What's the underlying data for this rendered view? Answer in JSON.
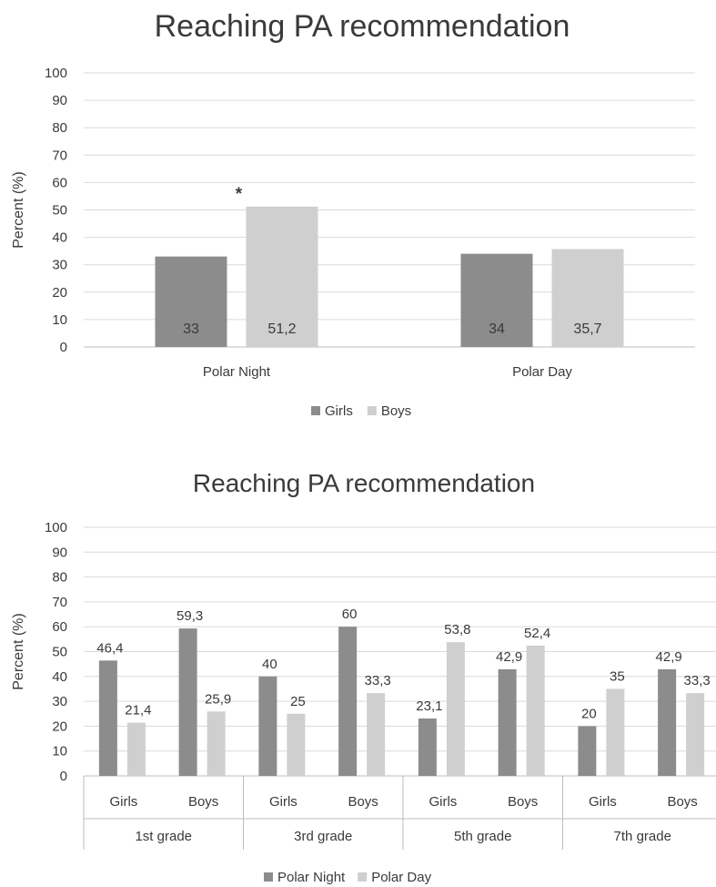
{
  "chart_data": [
    {
      "type": "bar",
      "title": "Reaching PA recommendation",
      "ylabel": "Percent (%)",
      "xlabel": "",
      "ylim": [
        0,
        100
      ],
      "yticks": [
        "0",
        "10",
        "20",
        "30",
        "40",
        "50",
        "60",
        "70",
        "80",
        "90",
        "100"
      ],
      "grid": true,
      "legend_position": "bottom",
      "categories": [
        "Polar Night",
        "Polar Day"
      ],
      "series": [
        {
          "name": "Girls",
          "color": "#8c8c8c",
          "values": [
            33,
            34
          ],
          "labels": [
            "33",
            "34"
          ]
        },
        {
          "name": "Boys",
          "color": "#cfcfcf",
          "values": [
            51.2,
            35.7
          ],
          "labels": [
            "51,2",
            "35,7"
          ]
        }
      ],
      "annotations": [
        {
          "text": "*",
          "category": "Polar Night",
          "series": "Boys"
        }
      ]
    },
    {
      "type": "bar",
      "title": "Reaching PA recommendation",
      "ylabel": "Percent (%)",
      "xlabel": "",
      "ylim": [
        0,
        100
      ],
      "yticks": [
        "0",
        "10",
        "20",
        "30",
        "40",
        "50",
        "60",
        "70",
        "80",
        "90",
        "100"
      ],
      "grid": true,
      "legend_position": "bottom",
      "categories": [
        "Girls",
        "Boys",
        "Girls",
        "Boys",
        "Girls",
        "Boys",
        "Girls",
        "Boys"
      ],
      "groups": [
        "1st grade",
        "3rd grade",
        "5th grade",
        "7th grade"
      ],
      "series": [
        {
          "name": "Polar Night",
          "color": "#8c8c8c",
          "values": [
            46.4,
            59.3,
            40,
            60,
            23.1,
            42.9,
            20,
            42.9
          ],
          "labels": [
            "46,4",
            "59,3",
            "40",
            "60",
            "23,1",
            "42,9",
            "20",
            "42,9"
          ]
        },
        {
          "name": "Polar Day",
          "color": "#cfcfcf",
          "values": [
            21.4,
            25.9,
            25,
            33.3,
            53.8,
            52.4,
            35,
            33.3
          ],
          "labels": [
            "21,4",
            "25,9",
            "25",
            "33,3",
            "53,8",
            "52,4",
            "35",
            "33,3"
          ]
        }
      ]
    }
  ]
}
